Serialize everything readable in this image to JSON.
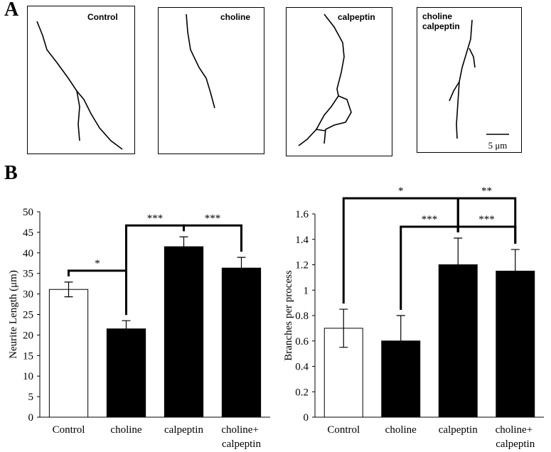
{
  "panels": {
    "a": "A",
    "b": "B"
  },
  "tracings": [
    {
      "label": "Control"
    },
    {
      "label": "choline"
    },
    {
      "label": "calpeptin"
    },
    {
      "label": "choline calpeptin"
    }
  ],
  "scale_bar": "5 μm",
  "chart_data": [
    {
      "type": "bar",
      "y_label": "Neurite Length (μm)",
      "categories": [
        "Control",
        "choline",
        "calpeptin",
        "choline+ calpeptin"
      ],
      "values": [
        31.1,
        21.5,
        41.5,
        36.3
      ],
      "errors": [
        1.8,
        2.0,
        2.4,
        2.6
      ],
      "colors": [
        "#ffffff",
        "#000000",
        "#000000",
        "#000000"
      ],
      "ylim": [
        0,
        50
      ],
      "yticks": [
        0,
        5,
        10,
        15,
        20,
        25,
        30,
        35,
        40,
        45,
        50
      ],
      "brackets": [
        {
          "label": "*",
          "from": "Control",
          "to": "choline"
        },
        {
          "label": "***",
          "from": "choline",
          "to": "calpeptin"
        },
        {
          "label": "***",
          "from": "calpeptin",
          "to": "choline+ calpeptin"
        }
      ]
    },
    {
      "type": "bar",
      "y_label": "Branches per process",
      "categories": [
        "Control",
        "choline",
        "calpeptin",
        "choline+ calpeptin"
      ],
      "values": [
        0.7,
        0.6,
        1.2,
        1.15
      ],
      "errors": [
        0.15,
        0.2,
        0.21,
        0.17
      ],
      "colors": [
        "#ffffff",
        "#000000",
        "#000000",
        "#000000"
      ],
      "ylim": [
        0,
        1.6
      ],
      "yticks": [
        0,
        0.2,
        0.4,
        0.6,
        0.8,
        1,
        1.2,
        1.4,
        1.6
      ],
      "brackets": [
        {
          "label": "***",
          "from": "choline",
          "to": "calpeptin"
        },
        {
          "label": "***",
          "from": "calpeptin",
          "to": "choline+ calpeptin"
        },
        {
          "label": "*",
          "from": "Control",
          "to": "calpeptin"
        },
        {
          "label": "**",
          "from": "calpeptin",
          "to": "choline+ calpeptin"
        }
      ]
    }
  ]
}
